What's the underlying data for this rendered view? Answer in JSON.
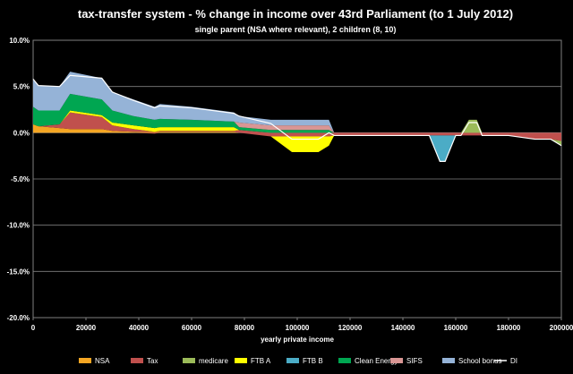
{
  "chart_data": {
    "type": "area",
    "title": "tax-transfer system - % change in income over 43rd Parliament  (to 1 July 2012)",
    "subtitle": "single parent (NSA where relevant), 2 children (8, 10)",
    "xlabel": "yearly private income",
    "ylabel": "",
    "xlim": [
      0,
      200000
    ],
    "ylim": [
      -20,
      10
    ],
    "y_ticks": [
      "10.0%",
      "5.0%",
      "0.0%",
      "-5.0%",
      "-10.0%",
      "-15.0%",
      "-20.0%"
    ],
    "x_ticks": [
      "0",
      "20000",
      "40000",
      "60000",
      "80000",
      "100000",
      "120000",
      "140000",
      "160000",
      "180000",
      "200000"
    ],
    "x": [
      0,
      2000,
      10000,
      14000,
      26000,
      30000,
      38000,
      46000,
      48000,
      60000,
      76000,
      78000,
      90000,
      98000,
      100000,
      108000,
      112000,
      114000,
      120000,
      130000,
      145000,
      148000,
      150000,
      154000,
      156000,
      160000,
      162000,
      165000,
      168000,
      170000,
      180000,
      190000,
      196000,
      200000
    ],
    "series": [
      {
        "name": "NSA",
        "color": "#F5A623",
        "values": [
          0.9,
          0.7,
          0.5,
          0.4,
          0.4,
          0.2,
          0.1,
          0.1,
          0.1,
          0.1,
          0.1,
          0,
          0,
          0,
          0,
          0,
          0,
          0,
          0,
          0,
          0,
          0,
          0,
          0,
          0,
          0,
          0,
          0,
          0,
          0,
          0,
          0,
          0,
          0
        ]
      },
      {
        "name": "Tax",
        "color": "#C0504D",
        "values": [
          0,
          0,
          0.4,
          1.8,
          1.3,
          0.6,
          0.3,
          -0.1,
          0.1,
          0.1,
          0.1,
          0.3,
          -0.4,
          -0.4,
          -0.4,
          -0.4,
          -0.4,
          -0.3,
          -0.3,
          -0.3,
          -0.3,
          -0.3,
          -0.3,
          -0.3,
          -0.3,
          -0.3,
          -0.3,
          -0.3,
          -0.3,
          -0.3,
          -0.3,
          -0.7,
          -0.7,
          -0.9
        ]
      },
      {
        "name": "medicare",
        "color": "#9BBB59",
        "values": [
          0,
          0,
          0,
          0,
          0,
          0,
          0,
          0,
          0,
          0,
          0,
          0,
          0,
          0,
          0,
          0,
          0,
          0,
          0,
          0,
          0,
          0,
          0,
          0,
          0,
          0,
          0,
          1.4,
          1.4,
          0,
          0,
          0,
          0,
          -0.5
        ]
      },
      {
        "name": "FTB A",
        "color": "#FFFF00",
        "values": [
          0,
          0,
          0,
          0.2,
          0.2,
          0.3,
          0.4,
          0.4,
          0.4,
          0.4,
          0.4,
          0,
          0,
          -1.7,
          -1.7,
          -1.7,
          -1.0,
          0,
          0,
          0,
          0,
          0,
          0,
          0,
          0,
          0,
          0,
          0,
          0,
          0,
          0,
          0,
          0,
          0
        ]
      },
      {
        "name": "FTB B",
        "color": "#4BACC6",
        "values": [
          0,
          0,
          0,
          0,
          0,
          0,
          0,
          0,
          0,
          0,
          0,
          0,
          0,
          0,
          0,
          0,
          0,
          0,
          0,
          0,
          0,
          0,
          0,
          -2.8,
          -2.8,
          0,
          0,
          0,
          0,
          0,
          0,
          0,
          0,
          0
        ]
      },
      {
        "name": "Clean Energy",
        "color": "#00A651",
        "values": [
          1.9,
          1.7,
          1.5,
          1.8,
          1.7,
          1.3,
          1.0,
          0.9,
          0.9,
          0.8,
          0.6,
          0.3,
          0.3,
          0.3,
          0.3,
          0.3,
          0.3,
          0,
          0,
          0,
          0,
          0,
          0,
          0,
          0,
          0,
          0,
          0,
          0,
          0,
          0,
          0,
          0,
          0
        ]
      },
      {
        "name": "SIFS",
        "color": "#D99694",
        "values": [
          0,
          0,
          0,
          0,
          0,
          0,
          0,
          0,
          0,
          0,
          0,
          0.5,
          0.5,
          0.5,
          0.5,
          0.5,
          0.5,
          0,
          0,
          0,
          0,
          0,
          0,
          0,
          0,
          0,
          0,
          0,
          0,
          0,
          0,
          0,
          0,
          0
        ]
      },
      {
        "name": "School bonus",
        "color": "#95B3D7",
        "values": [
          3.0,
          2.7,
          2.6,
          2.4,
          2.3,
          2.0,
          1.8,
          1.4,
          1.6,
          1.4,
          1.0,
          0.7,
          0.6,
          0.6,
          0.6,
          0.6,
          0.6,
          0,
          0,
          0,
          0,
          0,
          0,
          0,
          0,
          0,
          0,
          0,
          0,
          0,
          0,
          0,
          0,
          0
        ]
      },
      {
        "name": "DI",
        "color": "#FFFFFF",
        "type": "line",
        "values": [
          5.8,
          5.1,
          5.0,
          6.2,
          5.9,
          4.4,
          3.5,
          2.7,
          2.9,
          2.7,
          2.1,
          1.8,
          1.0,
          -0.7,
          -0.7,
          -0.7,
          0,
          -0.3,
          -0.3,
          -0.3,
          -0.3,
          -0.3,
          -0.3,
          -3.1,
          -3.1,
          -0.3,
          -0.3,
          1.1,
          1.1,
          -0.3,
          -0.3,
          -0.7,
          -0.7,
          -1.4
        ]
      }
    ]
  }
}
